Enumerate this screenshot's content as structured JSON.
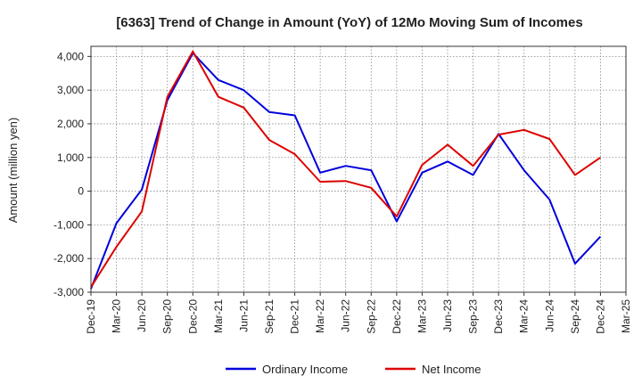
{
  "chart_data": {
    "type": "line",
    "title": "[6363]  Trend of Change in Amount (YoY) of 12Mo Moving Sum of Incomes",
    "xlabel": "",
    "ylabel": "Amount (million yen)",
    "ylim": [
      -3000,
      4300
    ],
    "yticks": [
      -3000,
      -2000,
      -1000,
      0,
      1000,
      2000,
      3000,
      4000
    ],
    "ytick_labels": [
      "-3,000",
      "-2,000",
      "-1,000",
      "0",
      "1,000",
      "2,000",
      "3,000",
      "4,000"
    ],
    "categories": [
      "Dec-19",
      "Mar-20",
      "Jun-20",
      "Sep-20",
      "Dec-20",
      "Mar-21",
      "Jun-21",
      "Sep-21",
      "Dec-21",
      "Mar-22",
      "Jun-22",
      "Sep-22",
      "Dec-22",
      "Mar-23",
      "Jun-23",
      "Sep-23",
      "Dec-23",
      "Mar-24",
      "Jun-24",
      "Sep-24",
      "Dec-24",
      "Mar-25"
    ],
    "grid": true,
    "legend_position": "bottom-center",
    "series": [
      {
        "name": "Ordinary Income",
        "color": "#0000dd",
        "values": [
          -2900,
          -950,
          50,
          2700,
          4100,
          3300,
          3000,
          2350,
          2250,
          550,
          750,
          620,
          -900,
          550,
          880,
          480,
          1700,
          620,
          -250,
          -2150,
          -1350,
          null
        ]
      },
      {
        "name": "Net Income",
        "color": "#dd0000",
        "values": [
          -2850,
          -1650,
          -600,
          2800,
          4150,
          2800,
          2480,
          1520,
          1100,
          280,
          300,
          100,
          -750,
          780,
          1380,
          750,
          1680,
          1820,
          1550,
          480,
          1000,
          null
        ]
      }
    ]
  }
}
